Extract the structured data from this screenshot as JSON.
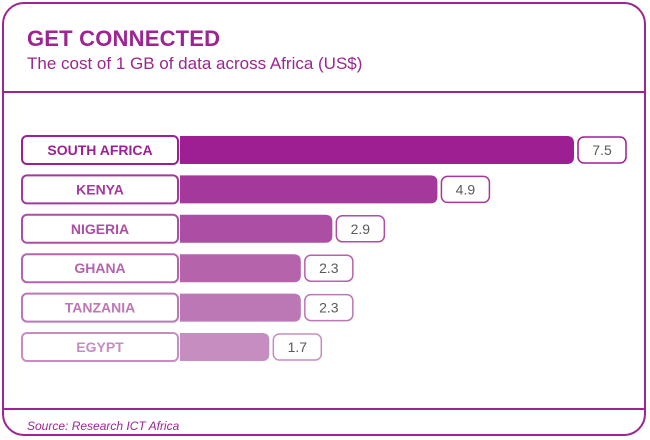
{
  "header": {
    "title": "GET CONNECTED",
    "subtitle": "The cost of 1 GB of data across Africa (US$)"
  },
  "footer": {
    "source": "Source: Research ICT Africa"
  },
  "colors": {
    "accent": "#9c2590",
    "bars": [
      "#9e1f92",
      "#a5389b",
      "#ac4ea3",
      "#b564ac",
      "#bc77b5",
      "#c68dc1"
    ]
  },
  "chart_data": {
    "type": "bar",
    "orientation": "horizontal",
    "title": "GET CONNECTED",
    "subtitle": "The cost of 1 GB of data across Africa (US$)",
    "unit": "US$",
    "categories": [
      "SOUTH AFRICA",
      "KENYA",
      "NIGERIA",
      "GHANA",
      "TANZANIA",
      "EGYPT"
    ],
    "values": [
      7.5,
      4.9,
      2.9,
      2.3,
      2.3,
      1.7
    ],
    "value_labels": [
      "7.5",
      "4.9",
      "2.9",
      "2.3",
      "2.3",
      "1.7"
    ],
    "xlim": [
      0,
      7.5
    ],
    "grid": false
  }
}
